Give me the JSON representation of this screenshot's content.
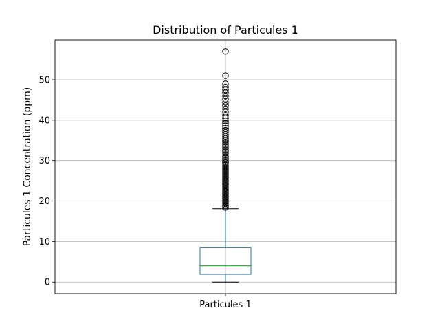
{
  "chart_data": {
    "type": "box",
    "title": "Distribution of Particules 1",
    "xlabel": "",
    "ylabel": "Particules 1 Concentration (ppm)",
    "categories": [
      "Particules 1"
    ],
    "ylim": [
      -2.85,
      59.85
    ],
    "yticks": [
      0,
      10,
      20,
      30,
      40,
      50
    ],
    "grid": true,
    "box": {
      "whisker_low": 0.0,
      "q1": 1.9,
      "median": 4.0,
      "q3": 8.6,
      "whisker_high": 18.1
    },
    "outliers": [
      18.4,
      18.7,
      19.0,
      19.3,
      19.6,
      19.9,
      20.2,
      20.5,
      20.8,
      21.1,
      21.4,
      21.7,
      22.0,
      22.3,
      22.6,
      22.9,
      23.2,
      23.5,
      23.8,
      24.1,
      24.4,
      24.7,
      25.0,
      25.3,
      25.6,
      25.9,
      26.2,
      26.5,
      26.8,
      27.1,
      27.4,
      27.7,
      28.0,
      28.3,
      28.6,
      28.9,
      29.2,
      29.5,
      29.8,
      30.2,
      30.6,
      31.0,
      31.4,
      31.8,
      32.2,
      32.6,
      33.0,
      33.4,
      33.8,
      34.2,
      34.6,
      35.0,
      35.5,
      36.0,
      36.5,
      37.0,
      37.5,
      38.0,
      38.6,
      39.2,
      39.8,
      40.5,
      41.2,
      42.0,
      42.8,
      43.6,
      44.4,
      45.2,
      46.0,
      46.8,
      47.5,
      48.2,
      49.0,
      51.0,
      57.0
    ],
    "colors": {
      "box": "#1f77b4",
      "median": "#2ca02c",
      "whisker": "#1f77b4",
      "cap": "#000000",
      "grid": "#b0b0b0"
    }
  }
}
